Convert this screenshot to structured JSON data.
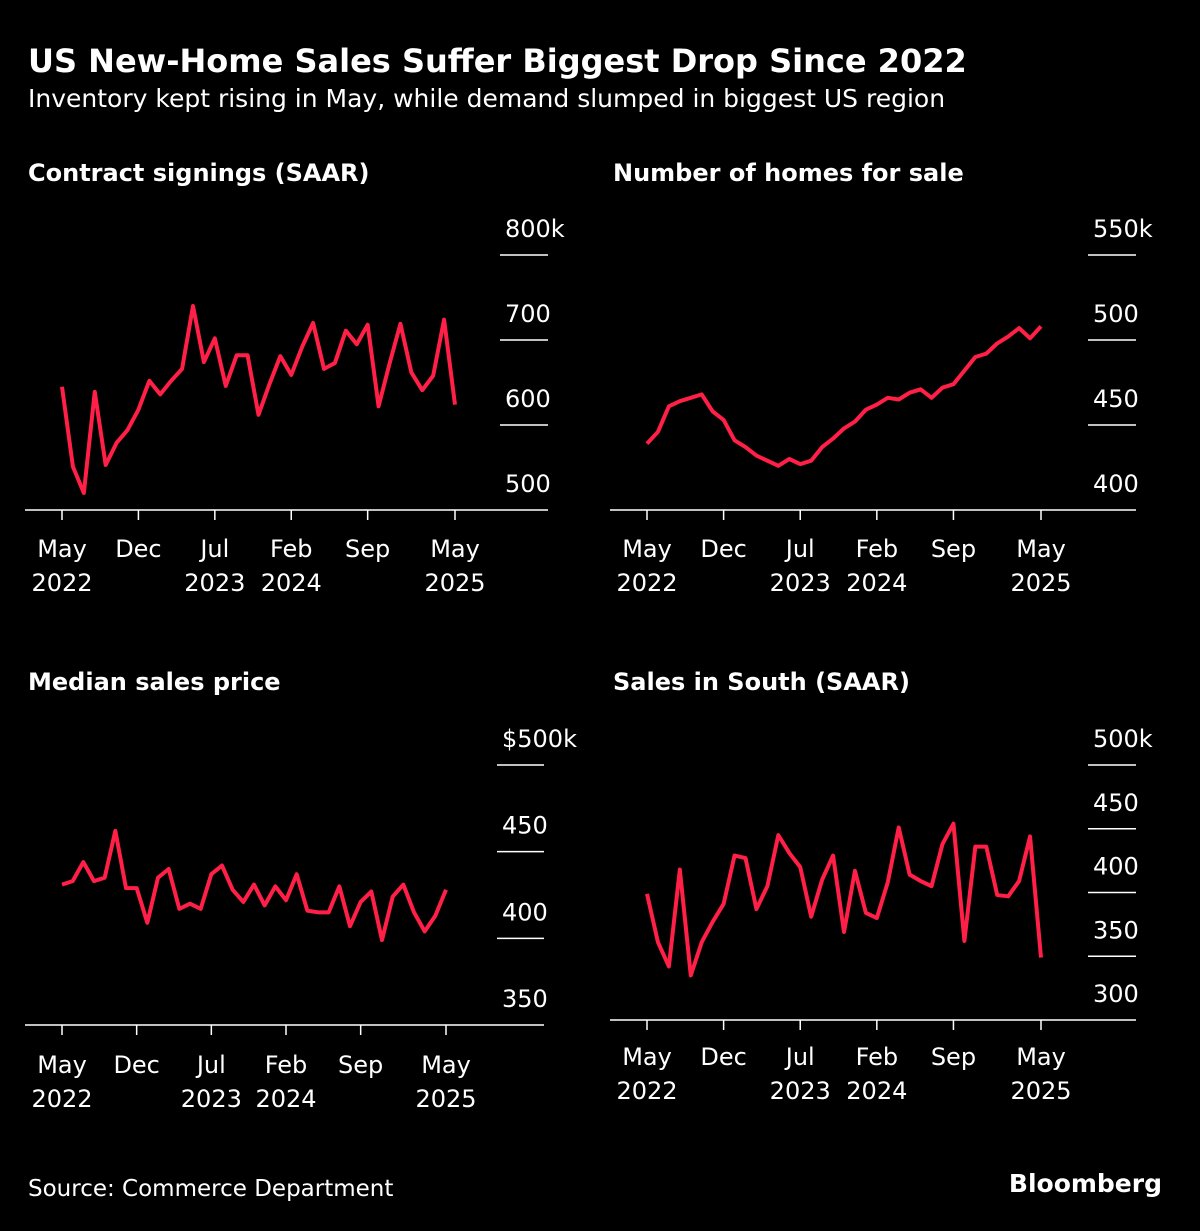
{
  "title": "US New-Home Sales Suffer Biggest Drop Since 2022",
  "subtitle": "Inventory kept rising in May, while demand slumped in biggest US region",
  "source": "Source: Commerce Department",
  "logo": "Bloomberg",
  "chart_data": [
    {
      "type": "line",
      "title": "Contract signings (SAAR)",
      "color": "#ff1f47",
      "categories": [
        "May 2022",
        null,
        null,
        null,
        null,
        null,
        null,
        "Dec",
        null,
        null,
        null,
        null,
        null,
        null,
        "Jul 2023",
        null,
        null,
        null,
        null,
        null,
        null,
        "Feb 2024",
        null,
        null,
        null,
        null,
        null,
        null,
        "Sep",
        null,
        null,
        null,
        null,
        null,
        null,
        null,
        "May 2025"
      ],
      "values": [
        645,
        551,
        520,
        639,
        553,
        579,
        594,
        618,
        652,
        636,
        652,
        666,
        740,
        674,
        702,
        646,
        682,
        682,
        612,
        648,
        681,
        659,
        692,
        720,
        666,
        673,
        711,
        695,
        718,
        622,
        672,
        719,
        662,
        641,
        658,
        724,
        624
      ],
      "ylim": [
        500,
        800
      ],
      "yticks": [
        500,
        600,
        700,
        {
          "value": 800,
          "label": "800k"
        }
      ]
    },
    {
      "type": "line",
      "title": "Number of homes for sale",
      "color": "#ff1f47",
      "categories": [
        "May 2022",
        null,
        null,
        null,
        null,
        null,
        null,
        "Dec",
        null,
        null,
        null,
        null,
        null,
        null,
        "Jul 2023",
        null,
        null,
        null,
        null,
        null,
        null,
        "Feb 2024",
        null,
        null,
        null,
        null,
        null,
        null,
        "Sep",
        null,
        null,
        null,
        null,
        null,
        null,
        null,
        "May 2025"
      ],
      "values": [
        439,
        446,
        461,
        464,
        466,
        468,
        458,
        453,
        441,
        437,
        432,
        429,
        426,
        430,
        427,
        429,
        437,
        442,
        448,
        452,
        459,
        462,
        466,
        465,
        469,
        471,
        466,
        472,
        474,
        482,
        490,
        492,
        498,
        502,
        507,
        501,
        508
      ],
      "ylim": [
        400,
        550
      ],
      "yticks": [
        400,
        450,
        500,
        {
          "value": 550,
          "label": "550k"
        }
      ]
    },
    {
      "type": "line",
      "title": "Median sales price",
      "color": "#ff1f47",
      "categories": [
        "May 2022",
        null,
        null,
        null,
        null,
        null,
        null,
        "Dec",
        null,
        null,
        null,
        null,
        null,
        null,
        "Jul 2023",
        null,
        null,
        null,
        null,
        null,
        null,
        "Feb 2024",
        null,
        null,
        null,
        null,
        null,
        null,
        "Sep",
        null,
        null,
        null,
        null,
        null,
        null,
        null,
        "May 2025"
      ],
      "values": [
        431,
        433,
        444,
        433,
        435,
        462,
        429,
        429,
        409,
        435,
        440,
        417,
        420,
        417,
        437,
        442,
        428,
        421,
        431,
        419,
        430,
        422,
        437,
        416,
        415,
        415,
        430,
        407,
        421,
        427,
        399,
        424,
        431,
        415,
        404,
        413,
        428
      ],
      "ylim": [
        350,
        500
      ],
      "yticks": [
        350,
        400,
        450,
        {
          "value": 500,
          "label": "$500k"
        }
      ]
    },
    {
      "type": "line",
      "title": "Sales in South (SAAR)",
      "color": "#ff1f47",
      "categories": [
        "May 2022",
        null,
        null,
        null,
        null,
        null,
        null,
        "Dec",
        null,
        null,
        null,
        null,
        null,
        null,
        "Jul 2023",
        null,
        null,
        null,
        null,
        null,
        null,
        "Feb 2024",
        null,
        null,
        null,
        null,
        null,
        null,
        "Sep",
        null,
        null,
        null,
        null,
        null,
        null,
        null,
        "May 2025"
      ],
      "values": [
        399,
        361,
        342,
        418,
        335,
        361,
        377,
        391,
        429,
        427,
        387,
        405,
        445,
        431,
        420,
        381,
        410,
        429,
        369,
        417,
        384,
        380,
        408,
        451,
        414,
        409,
        405,
        438,
        454,
        362,
        436,
        436,
        398,
        397,
        409,
        444,
        349
      ],
      "ylim": [
        300,
        500
      ],
      "yticks": [
        300,
        350,
        400,
        450,
        {
          "value": 500,
          "label": "500k"
        }
      ]
    }
  ]
}
